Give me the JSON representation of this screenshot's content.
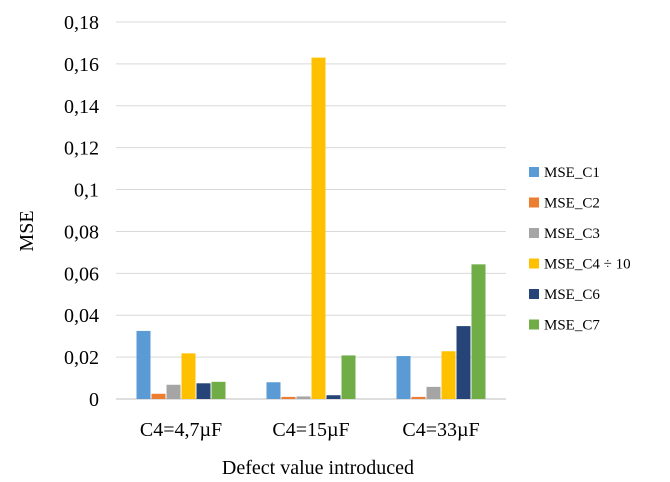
{
  "chart_data": {
    "type": "bar",
    "xlabel": "Defect value introduced",
    "ylabel": "MSE",
    "ylim": [
      0,
      0.18
    ],
    "yticks": [
      0,
      0.02,
      0.04,
      0.06,
      0.08,
      0.1,
      0.12,
      0.14,
      0.16,
      0.18
    ],
    "ytick_labels": [
      "0",
      "0,02",
      "0,04",
      "0,06",
      "0,08",
      "0,1",
      "0,12",
      "0,14",
      "0,16",
      "0,18"
    ],
    "grid": true,
    "legend_position": "right",
    "categories": [
      "C4=4,7µF",
      "C4=15µF",
      "C4=33µF"
    ],
    "series": [
      {
        "name": "MSE_C1",
        "color": "#5b9bd5",
        "values": [
          0.0325,
          0.008,
          0.0205
        ]
      },
      {
        "name": "MSE_C2",
        "color": "#ed7d31",
        "values": [
          0.0025,
          0.001,
          0.001
        ]
      },
      {
        "name": "MSE_C3",
        "color": "#a5a5a5",
        "values": [
          0.0068,
          0.0012,
          0.0058
        ]
      },
      {
        "name": "MSE_C4 ÷ 10",
        "color": "#ffc000",
        "values": [
          0.0218,
          0.163,
          0.0228
        ]
      },
      {
        "name": "MSE_C6",
        "color": "#264478",
        "values": [
          0.0075,
          0.0018,
          0.0348
        ]
      },
      {
        "name": "MSE_C7",
        "color": "#70ad47",
        "values": [
          0.0082,
          0.0208,
          0.0643
        ]
      }
    ]
  }
}
